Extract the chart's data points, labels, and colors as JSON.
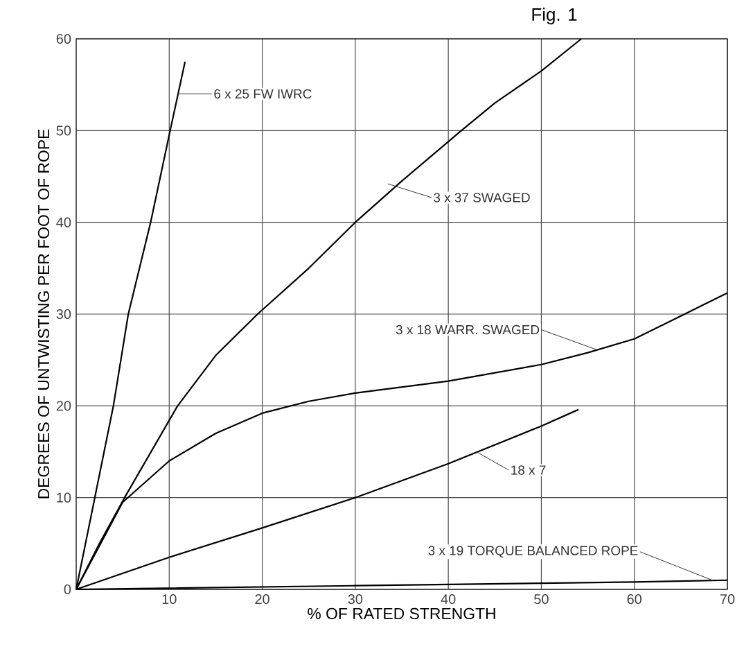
{
  "chart_data": {
    "type": "line",
    "title": "Fig. 1",
    "xlabel": "% OF RATED STRENGTH",
    "ylabel": "DEGREES OF UNTWISTING PER FOOT OF ROPE",
    "xlim": [
      0,
      70
    ],
    "ylim": [
      0,
      60
    ],
    "xticks": [
      10,
      20,
      30,
      40,
      50,
      60,
      70
    ],
    "yticks": [
      0,
      10,
      20,
      30,
      40,
      50,
      60
    ],
    "grid": true,
    "legend": false,
    "marker": "none",
    "line_style": "solid",
    "series": [
      {
        "name": "6 x 25 FW IWRC",
        "color": "#000000",
        "x": [
          0,
          2,
          4,
          5.6,
          8,
          10.1,
          11.7
        ],
        "values": [
          0,
          10,
          20,
          30,
          40,
          50,
          57.5
        ]
      },
      {
        "name": "3 x 37 SWAGED",
        "color": "#000000",
        "x": [
          0,
          2.5,
          5.2,
          10.9,
          15,
          19.5,
          25,
          30,
          35,
          41.4,
          45,
          50,
          54.3
        ],
        "values": [
          0,
          5,
          10,
          20,
          25.5,
          30,
          35,
          40,
          44.5,
          50,
          53,
          56.5,
          60
        ]
      },
      {
        "name": "3 x 18 WARR. SWAGED",
        "color": "#000000",
        "x": [
          0,
          5,
          10,
          15,
          20,
          25,
          30,
          40,
          50,
          55,
          60,
          65,
          70
        ],
        "values": [
          0,
          9.5,
          14,
          17,
          19.2,
          20.5,
          21.4,
          22.7,
          24.5,
          25.8,
          27.3,
          29.8,
          32.3
        ]
      },
      {
        "name": "18 x 7",
        "color": "#000000",
        "x": [
          0,
          10,
          20,
          30,
          40,
          50,
          54
        ],
        "values": [
          0,
          3.5,
          6.7,
          10,
          13.7,
          17.8,
          19.6
        ]
      },
      {
        "name": "3 x 19 TORQUE BALANCED ROPE",
        "color": "#000000",
        "x": [
          0,
          30,
          60,
          70
        ],
        "values": [
          0,
          0.4,
          0.8,
          1
        ]
      }
    ]
  }
}
